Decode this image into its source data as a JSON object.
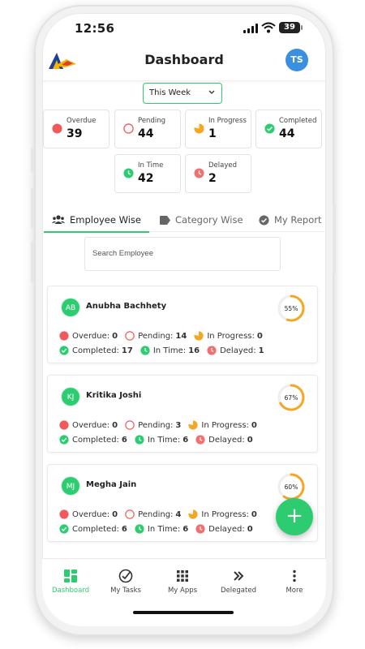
{
  "status_bar": {
    "time": "12:56",
    "battery": "39"
  },
  "header": {
    "title": "Dashboard",
    "avatar_initials": "TS"
  },
  "filter": {
    "selected": "This Week"
  },
  "stats": [
    {
      "label": "Overdue",
      "value": "39",
      "color": "#f05a5a"
    },
    {
      "label": "Pending",
      "value": "44",
      "color": "#f05a5a"
    },
    {
      "label": "In Progress",
      "value": "1",
      "color": "#f5a623"
    },
    {
      "label": "Completed",
      "value": "44",
      "color": "#2ecc71"
    },
    {
      "label": "In Time",
      "value": "42",
      "color": "#2ecc71"
    },
    {
      "label": "Delayed",
      "value": "2",
      "color": "#f07070"
    }
  ],
  "tabs": [
    {
      "label": "Employee Wise",
      "active": true
    },
    {
      "label": "Category Wise",
      "active": false
    },
    {
      "label": "My Report",
      "active": false
    }
  ],
  "search": {
    "placeholder": "Search Employee"
  },
  "labels": {
    "overdue": "Overdue:",
    "pending": "Pending:",
    "in_progress": "In Progress:",
    "completed": "Completed:",
    "in_time": "In Time:",
    "delayed": "Delayed:"
  },
  "employees": [
    {
      "initials": "AB",
      "name": "Anubha Bachhety",
      "percent": "55%",
      "progress": 0.55,
      "overdue": "0",
      "pending": "14",
      "in_progress": "0",
      "completed": "17",
      "in_time": "16",
      "delayed": "1"
    },
    {
      "initials": "KJ",
      "name": "Kritika Joshi",
      "percent": "67%",
      "progress": 0.67,
      "overdue": "0",
      "pending": "3",
      "in_progress": "0",
      "completed": "6",
      "in_time": "6",
      "delayed": "0"
    },
    {
      "initials": "MJ",
      "name": "Megha Jain",
      "percent": "60%",
      "progress": 0.6,
      "overdue": "0",
      "pending": "4",
      "in_progress": "0",
      "completed": "6",
      "in_time": "6",
      "delayed": "0"
    }
  ],
  "fab": {
    "label": "+"
  },
  "bottom_nav": [
    {
      "label": "Dashboard",
      "icon": "dashboard-icon",
      "active": true
    },
    {
      "label": "My Tasks",
      "icon": "check-circle-icon",
      "active": false
    },
    {
      "label": "My Apps",
      "icon": "grid-icon",
      "active": false
    },
    {
      "label": "Delegated",
      "icon": "double-chevron-icon",
      "active": false
    },
    {
      "label": "More",
      "icon": "more-vertical-icon",
      "active": false
    }
  ],
  "colors": {
    "accent": "#2ecc71",
    "danger": "#f05a5a",
    "warning": "#f5a623",
    "avatar": "#3b8fe0"
  }
}
